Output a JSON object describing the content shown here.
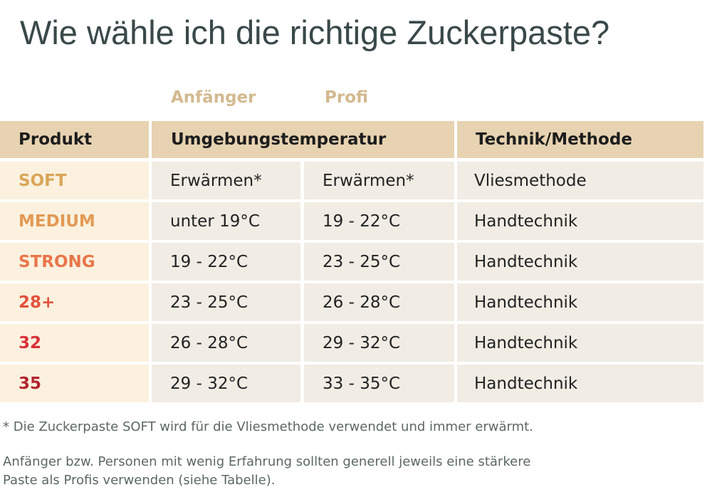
{
  "title": "Wie wähle ich die richtige Zuckerpaste?",
  "levels": {
    "beginner": "Anfänger",
    "pro": "Profi"
  },
  "header": {
    "product": "Produkt",
    "temperature": "Umgebungstemperatur",
    "technique": "Technik/Methode"
  },
  "rows": [
    {
      "product": "SOFT",
      "product_color": "#d9a658",
      "beginner": "Erwärmen*",
      "pro": "Erwärmen*",
      "technique": "Vliesmethode"
    },
    {
      "product": "MEDIUM",
      "product_color": "#e39a55",
      "beginner": "unter 19°C",
      "pro": "19 - 22°C",
      "technique": "Handtechnik"
    },
    {
      "product": "STRONG",
      "product_color": "#e8764a",
      "beginner": "19 - 22°C",
      "pro": "23 - 25°C",
      "technique": "Handtechnik"
    },
    {
      "product": "28+",
      "product_color": "#e2523d",
      "beginner": "23 - 25°C",
      "pro": "26 - 28°C",
      "technique": "Handtechnik"
    },
    {
      "product": "32",
      "product_color": "#d8303a",
      "beginner": "26 - 28°C",
      "pro": "29 - 32°C",
      "technique": "Handtechnik"
    },
    {
      "product": "35",
      "product_color": "#b22530",
      "beginner": "29 - 32°C",
      "pro": "33 - 35°C",
      "technique": "Handtechnik"
    }
  ],
  "footnote": "* Die Zuckerpaste SOFT wird für die Vliesmethode verwendet und immer erwärmt.",
  "advice_line1": "Anfänger bzw. Personen mit wenig Erfahrung sollten generell jeweils eine stärkere",
  "advice_line2": "Paste als Profis verwenden (siehe Tabelle)."
}
